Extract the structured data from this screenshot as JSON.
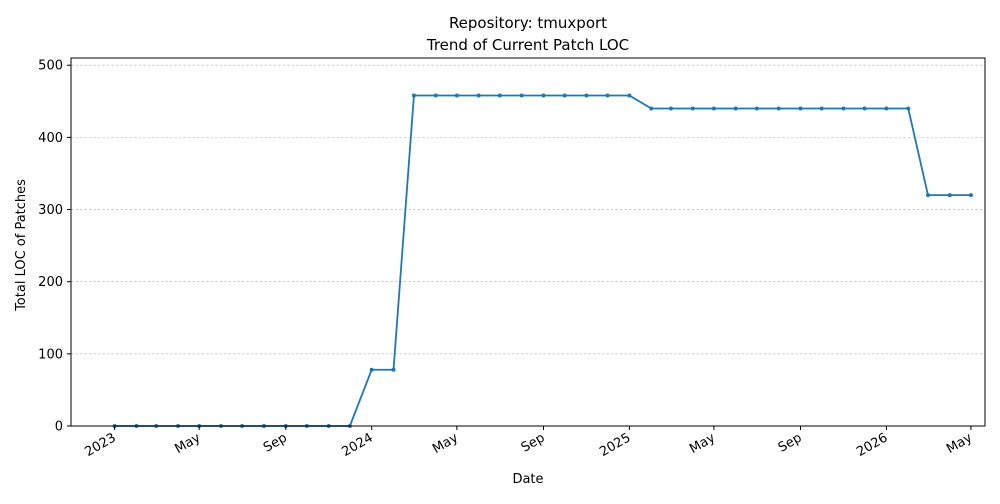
{
  "chart_data": {
    "type": "line",
    "title_line1": "Repository: tmuxport",
    "title_line2": "Trend of Current Patch LOC",
    "xlabel": "Date",
    "ylabel": "Total LOC of Patches",
    "ylim": [
      0,
      510
    ],
    "xlim": [
      "2022-10-31",
      "2026-05-21"
    ],
    "grid": "horizontal dashed",
    "line_color": "#1f77b4",
    "y_ticks": [
      0,
      100,
      200,
      300,
      400,
      500
    ],
    "x_ticks": [
      {
        "date": "2023-01-01",
        "label": "2023"
      },
      {
        "date": "2023-05-01",
        "label": "May"
      },
      {
        "date": "2023-09-01",
        "label": "Sep"
      },
      {
        "date": "2024-01-01",
        "label": "2024"
      },
      {
        "date": "2024-05-01",
        "label": "May"
      },
      {
        "date": "2024-09-01",
        "label": "Sep"
      },
      {
        "date": "2025-01-01",
        "label": "2025"
      },
      {
        "date": "2025-05-01",
        "label": "May"
      },
      {
        "date": "2025-09-01",
        "label": "Sep"
      },
      {
        "date": "2026-01-01",
        "label": "2026"
      },
      {
        "date": "2026-05-01",
        "label": "May"
      }
    ],
    "series": [
      {
        "x": [
          "2023-01-01",
          "2023-02-01",
          "2023-03-01",
          "2023-04-01",
          "2023-05-01",
          "2023-06-01",
          "2023-07-01",
          "2023-08-01",
          "2023-09-01",
          "2023-10-01",
          "2023-11-01",
          "2023-12-01",
          "2024-01-01",
          "2024-02-01",
          "2024-03-01",
          "2024-04-01",
          "2024-05-01",
          "2024-06-01",
          "2024-07-01",
          "2024-08-01",
          "2024-09-01",
          "2024-10-01",
          "2024-11-01",
          "2024-12-01",
          "2025-01-01",
          "2025-02-01",
          "2025-03-01",
          "2025-04-01",
          "2025-05-01",
          "2025-06-01",
          "2025-07-01",
          "2025-08-01",
          "2025-09-01",
          "2025-10-01",
          "2025-11-01",
          "2025-12-01",
          "2026-01-01",
          "2026-02-01",
          "2026-03-01",
          "2026-04-01",
          "2026-05-01"
        ],
        "values": [
          0,
          0,
          0,
          0,
          0,
          0,
          0,
          0,
          0,
          0,
          0,
          0,
          78,
          78,
          458,
          458,
          458,
          458,
          458,
          458,
          458,
          458,
          458,
          458,
          458,
          440,
          440,
          440,
          440,
          440,
          440,
          440,
          440,
          440,
          440,
          440,
          440,
          440,
          320,
          320,
          320
        ]
      }
    ]
  }
}
